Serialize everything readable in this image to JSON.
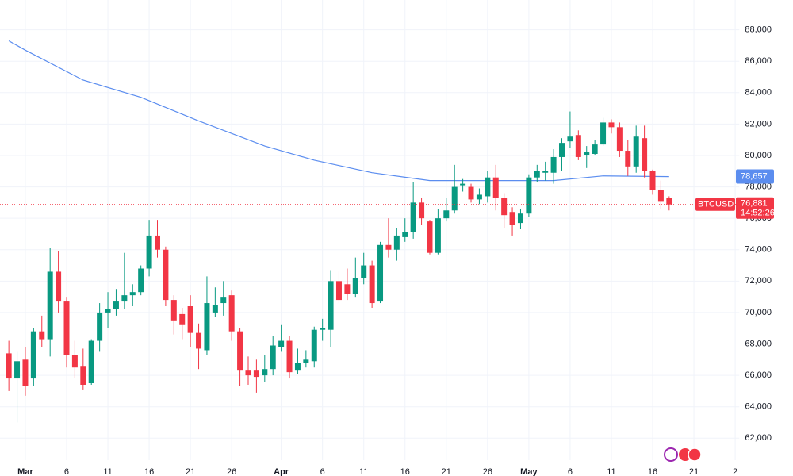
{
  "chart_data": {
    "type": "candlestick",
    "symbol": "BTCUSD",
    "x": [
      -2,
      -1,
      0,
      1,
      2,
      3,
      4,
      5,
      6,
      7,
      8,
      9,
      10,
      11,
      12,
      13,
      14,
      15,
      16,
      17,
      18,
      19,
      20,
      21,
      22,
      23,
      24,
      25,
      26,
      27,
      28,
      29,
      30,
      31,
      32,
      33,
      34,
      35,
      36,
      37,
      38,
      39,
      40,
      41,
      42,
      43,
      44,
      45,
      46,
      47,
      48,
      49,
      50,
      51,
      52,
      53,
      54,
      55,
      56,
      57,
      58,
      59,
      60,
      61,
      62,
      63,
      64,
      65,
      66,
      67,
      68,
      69,
      70,
      71,
      72,
      73,
      74,
      75,
      76,
      77,
      78
    ],
    "open": [
      67400,
      65800,
      67000,
      65800,
      68800,
      68300,
      72600,
      70700,
      67300,
      66600,
      65500,
      68200,
      70000,
      70200,
      70700,
      71100,
      71300,
      72800,
      74900,
      74000,
      70800,
      69900,
      70400,
      68700,
      67600,
      70000,
      70600,
      71100,
      68800,
      66300,
      66300,
      66000,
      66400,
      67800,
      68200,
      66300,
      66800,
      66900,
      68900,
      68900,
      72000,
      71800,
      71200,
      72200,
      73000,
      70700,
      74300,
      74000,
      74800,
      75100,
      77000,
      75800,
      73800,
      76000,
      76500,
      78100,
      78000,
      77200,
      77400,
      78600,
      77300,
      76400,
      75700,
      76300,
      78600,
      78900,
      78900,
      79900,
      80900,
      81300,
      80000,
      80100,
      80700,
      82100,
      81800,
      80300,
      79300,
      81100,
      79000,
      77800,
      77300
    ],
    "high": [
      68200,
      67500,
      67800,
      69000,
      69800,
      74100,
      73900,
      71000,
      68200,
      67700,
      68300,
      70600,
      71300,
      71500,
      73800,
      71800,
      73000,
      75900,
      75900,
      74200,
      71100,
      70300,
      71100,
      69300,
      72300,
      71600,
      72000,
      71400,
      69000,
      67200,
      67000,
      67300,
      68500,
      69200,
      68500,
      67700,
      67600,
      69100,
      69600,
      72700,
      72600,
      72800,
      73500,
      73800,
      73300,
      74500,
      76000,
      75400,
      76000,
      78300,
      77300,
      75900,
      76600,
      77300,
      79400,
      78500,
      78200,
      77900,
      79000,
      79400,
      77600,
      76700,
      76600,
      78800,
      79400,
      79600,
      80400,
      81100,
      82800,
      81600,
      80600,
      81000,
      82400,
      82300,
      82100,
      81000,
      81900,
      81900,
      79100,
      78400,
      77400
    ],
    "low": [
      65000,
      63000,
      64700,
      65300,
      67800,
      67200,
      70000,
      66500,
      65800,
      65100,
      65400,
      67500,
      69000,
      69800,
      70200,
      70400,
      71100,
      72300,
      73500,
      70400,
      68600,
      68300,
      67800,
      66400,
      67300,
      69700,
      69800,
      68200,
      65300,
      65400,
      64900,
      65600,
      66000,
      67500,
      65800,
      66100,
      66500,
      66500,
      68200,
      67800,
      70600,
      70800,
      71000,
      71800,
      70300,
      70600,
      73500,
      73300,
      74500,
      74700,
      75600,
      73700,
      73700,
      75800,
      76300,
      77700,
      77000,
      76900,
      77000,
      76500,
      75400,
      74900,
      75300,
      76100,
      78300,
      78400,
      78200,
      79000,
      80500,
      79700,
      79200,
      80000,
      80600,
      81400,
      79900,
      78700,
      78900,
      78600,
      77500,
      76600,
      76500
    ],
    "close": [
      65800,
      66900,
      65300,
      68800,
      68300,
      72600,
      70700,
      67300,
      66500,
      65400,
      68200,
      70000,
      70200,
      70700,
      71100,
      71300,
      72800,
      74900,
      74000,
      70800,
      69500,
      69200,
      68700,
      67700,
      70600,
      70500,
      71000,
      68800,
      66300,
      66000,
      65900,
      66400,
      67900,
      68200,
      66200,
      66800,
      67000,
      68900,
      69000,
      72000,
      70800,
      71200,
      72200,
      73000,
      70600,
      74300,
      74000,
      74900,
      75100,
      77000,
      76000,
      73800,
      76000,
      76500,
      78000,
      78200,
      77200,
      77500,
      78600,
      77300,
      76200,
      75600,
      76300,
      78600,
      79000,
      79000,
      79900,
      80800,
      81200,
      79900,
      80200,
      80700,
      82100,
      81800,
      80300,
      79300,
      81200,
      79000,
      77800,
      77100,
      76881
    ],
    "up_color": "#089981",
    "down_color": "#f23645",
    "ma": {
      "x": [
        -2,
        0,
        7,
        14,
        21,
        29,
        35,
        42,
        49,
        57,
        64,
        70,
        78
      ],
      "values": [
        87300,
        86700,
        84800,
        83700,
        82200,
        80600,
        79700,
        78900,
        78400,
        78400,
        78400,
        78700,
        78657
      ],
      "value_label": "78,657",
      "color": "#5b8def"
    },
    "last_price": 76881,
    "last_price_label": "76,881",
    "countdown": "14:52:26",
    "xlim": [
      -3.07,
      86.5
    ],
    "xticks": [
      {
        "value": 0,
        "label": "Mar"
      },
      {
        "value": 5,
        "label": "6"
      },
      {
        "value": 10,
        "label": "11"
      },
      {
        "value": 15,
        "label": "16"
      },
      {
        "value": 20,
        "label": "21"
      },
      {
        "value": 25,
        "label": "26"
      },
      {
        "value": 31,
        "label": "Apr"
      },
      {
        "value": 36,
        "label": "6"
      },
      {
        "value": 41,
        "label": "11"
      },
      {
        "value": 46,
        "label": "16"
      },
      {
        "value": 51,
        "label": "21"
      },
      {
        "value": 56,
        "label": "26"
      },
      {
        "value": 61,
        "label": "May"
      },
      {
        "value": 66,
        "label": "6"
      },
      {
        "value": 71,
        "label": "11"
      },
      {
        "value": 76,
        "label": "16"
      },
      {
        "value": 81,
        "label": "21"
      },
      {
        "value": 86,
        "label": "2"
      }
    ],
    "ylim": [
      60600,
      89900
    ],
    "yticks": [
      {
        "value": 62000,
        "label": "62,000"
      },
      {
        "value": 64000,
        "label": "64,000"
      },
      {
        "value": 66000,
        "label": "66,000"
      },
      {
        "value": 68000,
        "label": "68,000"
      },
      {
        "value": 70000,
        "label": "70,000"
      },
      {
        "value": 72000,
        "label": "72,000"
      },
      {
        "value": 74000,
        "label": "74,000"
      },
      {
        "value": 76000,
        "label": "76,000"
      },
      {
        "value": 78000,
        "label": "78,000"
      },
      {
        "value": 80000,
        "label": "80,000"
      },
      {
        "value": 82000,
        "label": "82,000"
      },
      {
        "value": 84000,
        "label": "84,000"
      },
      {
        "value": 86000,
        "label": "86,000"
      },
      {
        "value": 88000,
        "label": "88,000"
      }
    ],
    "grid": true
  }
}
